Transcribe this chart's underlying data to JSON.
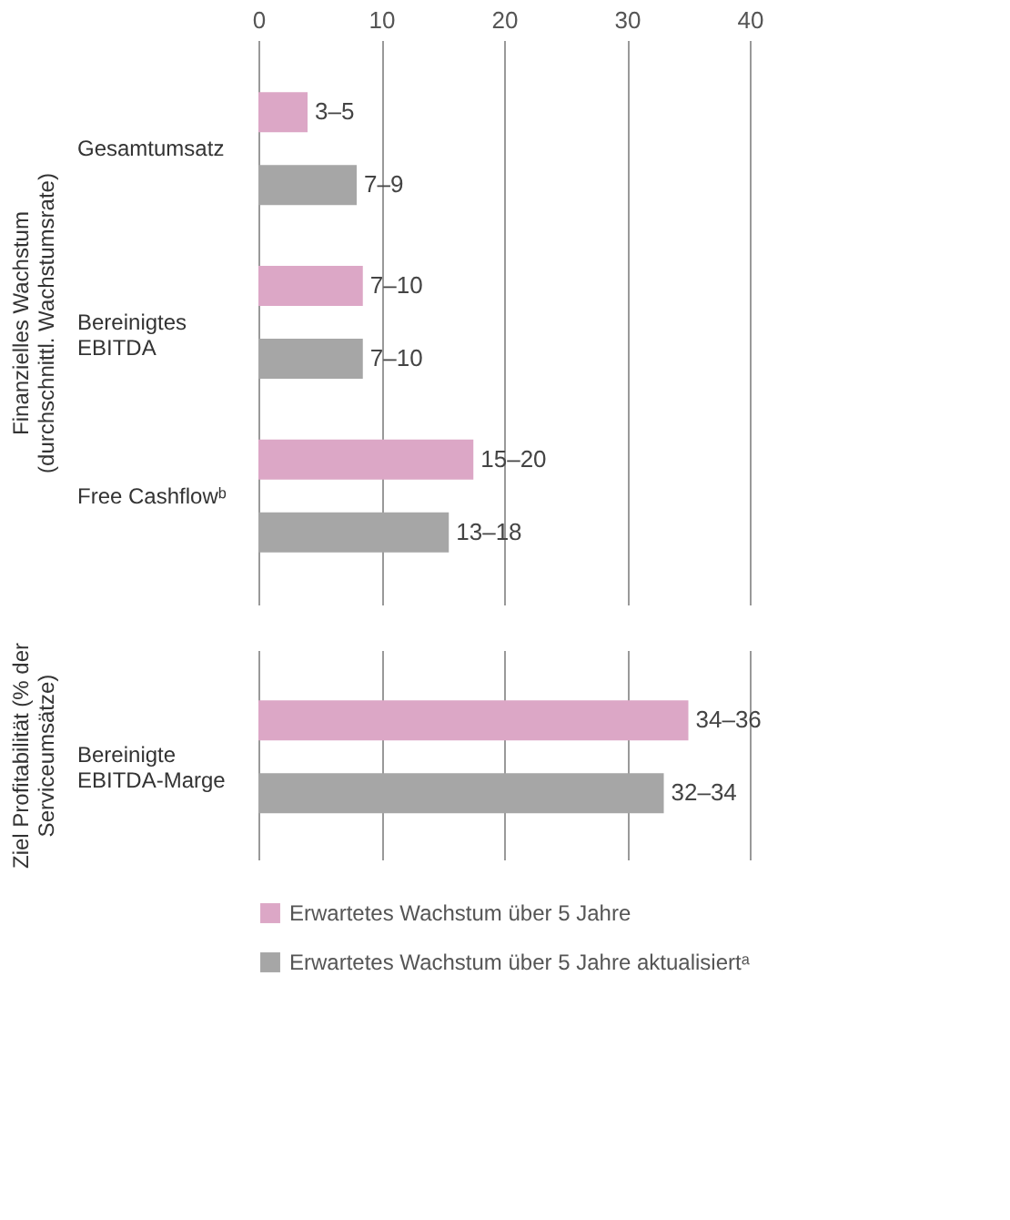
{
  "chart_data": [
    {
      "type": "bar",
      "orientation": "horizontal",
      "ylabel": "Finanzielles Wachstum (durchschnittl. Wachstumsrate)",
      "categories": [
        "Gesamtumsatz",
        "Bereinigtes EBITDA",
        "Free Cashflowᵇ"
      ],
      "series": [
        {
          "name": "Erwartetes Wachstum über 5 Jahre",
          "color": "#dca7c6",
          "values": [
            4,
            8.5,
            17.5
          ],
          "value_labels": [
            "3–5",
            "7–10",
            "15–20"
          ]
        },
        {
          "name": "Erwartetes Wachstum über 5 Jahre aktualisiertᵃ",
          "color": "#a6a6a6",
          "values": [
            8,
            8.5,
            15.5
          ],
          "value_labels": [
            "7–9",
            "7–10",
            "13–18"
          ]
        }
      ],
      "xlim": [
        0,
        40
      ],
      "xticks": [
        0,
        10,
        20,
        30,
        40
      ],
      "grid": "x",
      "legend": "bottom"
    },
    {
      "type": "bar",
      "orientation": "horizontal",
      "ylabel": "Ziel Profitabilität (% der Serviceumsätze)",
      "categories": [
        "Bereinigte EBITDA-Marge"
      ],
      "series": [
        {
          "name": "Erwartetes Wachstum über 5 Jahre",
          "color": "#dca7c6",
          "values": [
            35
          ],
          "value_labels": [
            "34–36"
          ]
        },
        {
          "name": "Erwartetes Wachstum über 5 Jahre aktualisiertᵃ",
          "color": "#a6a6a6",
          "values": [
            33
          ],
          "value_labels": [
            "32–34"
          ]
        }
      ],
      "xlim": [
        0,
        40
      ],
      "xticks": [
        0,
        10,
        20,
        30,
        40
      ],
      "grid": "x",
      "tick_labels": "y",
      "legend": "bottom"
    }
  ]
}
